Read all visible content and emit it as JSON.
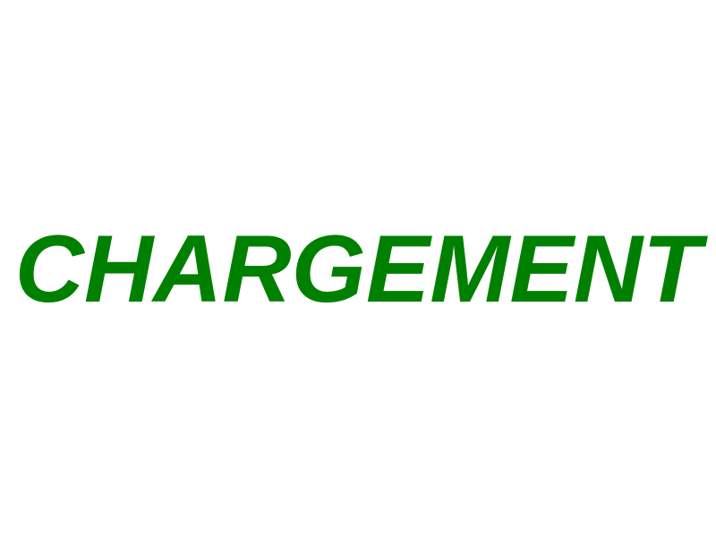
{
  "screen": {
    "loading_text": "CHARGEMENT",
    "text_color": "#008000",
    "background_color": "#ffffff"
  }
}
